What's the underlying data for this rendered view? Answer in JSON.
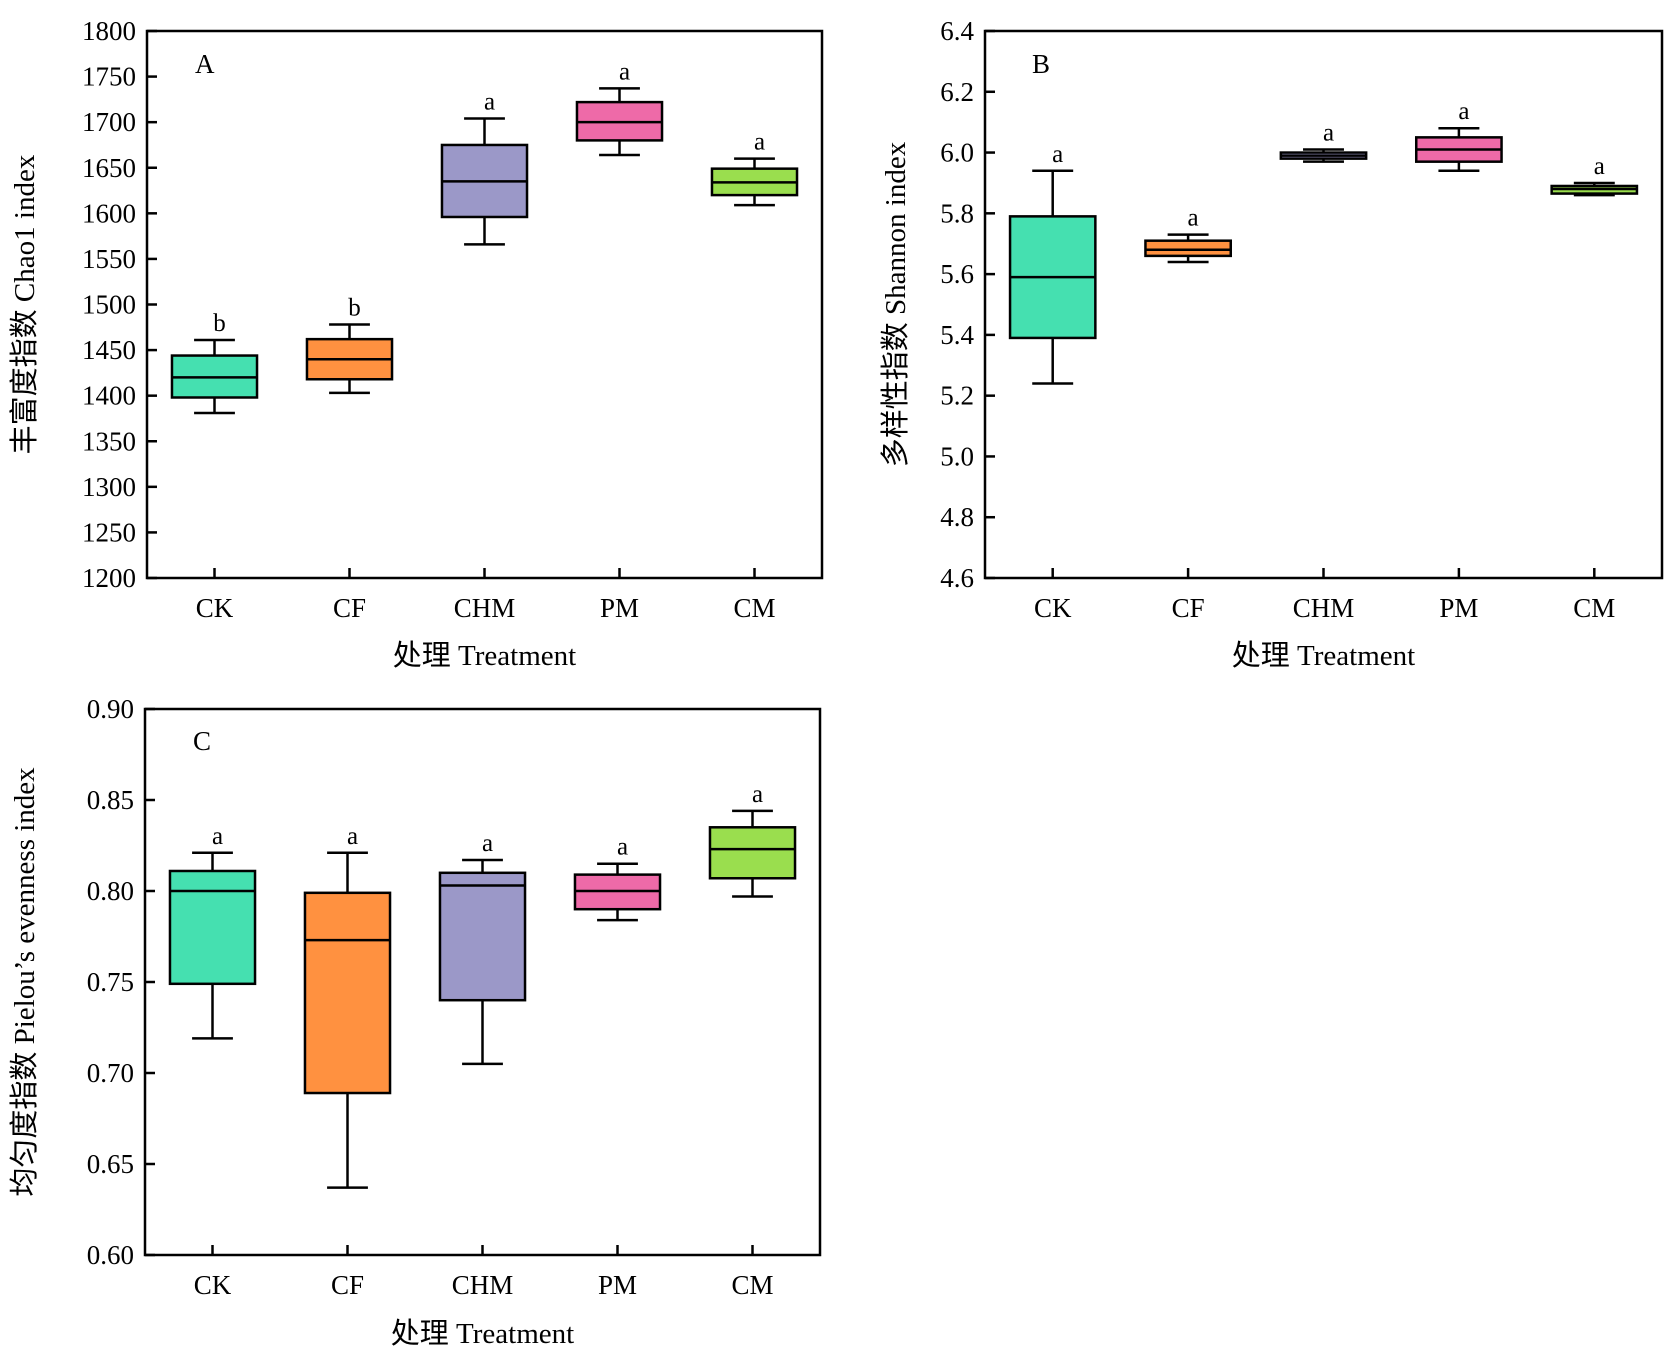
{
  "chart_data": [
    {
      "type": "box",
      "panel": "A",
      "categories": [
        "CK",
        "CF",
        "CHM",
        "PM",
        "CM"
      ],
      "colors": [
        "#45e0b0",
        "#ff9140",
        "#9b98c8",
        "#ee6aa8",
        "#9ade4e"
      ],
      "boxes": [
        {
          "min": 1381,
          "q1": 1398,
          "median": 1420,
          "q3": 1444,
          "max": 1461,
          "sig": "b"
        },
        {
          "min": 1403,
          "q1": 1418,
          "median": 1440,
          "q3": 1462,
          "max": 1478,
          "sig": "b"
        },
        {
          "min": 1566,
          "q1": 1596,
          "median": 1635,
          "q3": 1675,
          "max": 1704,
          "sig": "a"
        },
        {
          "min": 1664,
          "q1": 1680,
          "median": 1700,
          "q3": 1722,
          "max": 1737,
          "sig": "a"
        },
        {
          "min": 1609,
          "q1": 1620,
          "median": 1634,
          "q3": 1649,
          "max": 1660,
          "sig": "a"
        }
      ],
      "ylim": [
        1200,
        1800
      ],
      "yticks": [
        "1200",
        "1250",
        "1300",
        "1350",
        "1400",
        "1450",
        "1500",
        "1550",
        "1600",
        "1650",
        "1700",
        "1750",
        "1800"
      ],
      "xlabel": "处理 Treatment",
      "ylabel": "丰富度指数 Chao1 index",
      "grid": false
    },
    {
      "type": "box",
      "panel": "B",
      "categories": [
        "CK",
        "CF",
        "CHM",
        "PM",
        "CM"
      ],
      "colors": [
        "#45e0b0",
        "#ff9140",
        "#9b98c8",
        "#ee6aa8",
        "#9ade4e"
      ],
      "boxes": [
        {
          "min": 5.24,
          "q1": 5.39,
          "median": 5.59,
          "q3": 5.79,
          "max": 5.94,
          "sig": "a"
        },
        {
          "min": 5.64,
          "q1": 5.66,
          "median": 5.68,
          "q3": 5.71,
          "max": 5.73,
          "sig": "a"
        },
        {
          "min": 5.97,
          "q1": 5.98,
          "median": 5.99,
          "q3": 6.0,
          "max": 6.01,
          "sig": "a"
        },
        {
          "min": 5.94,
          "q1": 5.97,
          "median": 6.01,
          "q3": 6.05,
          "max": 6.08,
          "sig": "a"
        },
        {
          "min": 5.86,
          "q1": 5.865,
          "median": 5.88,
          "q3": 5.89,
          "max": 5.9,
          "sig": "a"
        }
      ],
      "ylim": [
        4.6,
        6.4
      ],
      "yticks": [
        "4.6",
        "4.8",
        "5.0",
        "5.2",
        "5.4",
        "5.6",
        "5.8",
        "6.0",
        "6.2",
        "6.4"
      ],
      "xlabel": "处理 Treatment",
      "ylabel": "多样性指数 Shannon index",
      "grid": false
    },
    {
      "type": "box",
      "panel": "C",
      "categories": [
        "CK",
        "CF",
        "CHM",
        "PM",
        "CM"
      ],
      "colors": [
        "#45e0b0",
        "#ff9140",
        "#9b98c8",
        "#ee6aa8",
        "#9ade4e"
      ],
      "boxes": [
        {
          "min": 0.719,
          "q1": 0.749,
          "median": 0.8,
          "q3": 0.811,
          "max": 0.821,
          "sig": "a"
        },
        {
          "min": 0.637,
          "q1": 0.689,
          "median": 0.773,
          "q3": 0.799,
          "max": 0.821,
          "sig": "a"
        },
        {
          "min": 0.705,
          "q1": 0.74,
          "median": 0.803,
          "q3": 0.81,
          "max": 0.817,
          "sig": "a"
        },
        {
          "min": 0.784,
          "q1": 0.79,
          "median": 0.8,
          "q3": 0.809,
          "max": 0.815,
          "sig": "a"
        },
        {
          "min": 0.797,
          "q1": 0.807,
          "median": 0.823,
          "q3": 0.835,
          "max": 0.844,
          "sig": "a"
        }
      ],
      "ylim": [
        0.6,
        0.9
      ],
      "yticks": [
        "0.60",
        "0.65",
        "0.70",
        "0.75",
        "0.80",
        "0.85",
        "0.90"
      ],
      "xlabel": "处理 Treatment",
      "ylabel": "均匀度指数 Pielou’s evenness index",
      "grid": false
    }
  ]
}
